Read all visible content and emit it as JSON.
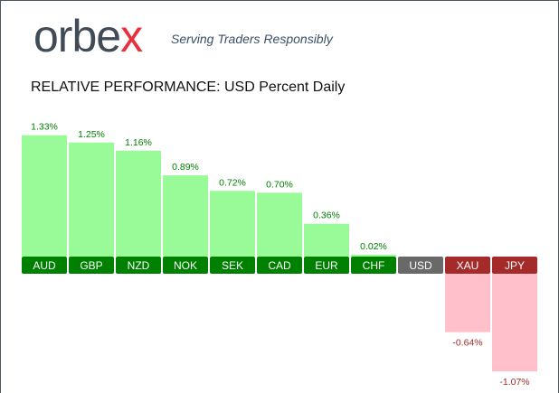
{
  "brand": {
    "logo_text": "orbex",
    "tagline": "Serving Traders Responsibly"
  },
  "chart_data": {
    "type": "bar",
    "title": "RELATIVE PERFORMANCE: USD Percent Daily",
    "categories": [
      "AUD",
      "GBP",
      "NZD",
      "NOK",
      "SEK",
      "CAD",
      "EUR",
      "CHF",
      "USD",
      "XAU",
      "JPY"
    ],
    "values": [
      1.33,
      1.25,
      1.16,
      0.89,
      0.72,
      0.7,
      0.36,
      0.02,
      0,
      -0.64,
      -1.07
    ],
    "labels": [
      "1.33%",
      "1.25%",
      "1.16%",
      "0.89%",
      "0.72%",
      "0.70%",
      "0.36%",
      "0.02%",
      "",
      "-0.64%",
      "-1.07%"
    ],
    "base_currency": "USD",
    "colors": {
      "pos_bar": "#98fb98",
      "pos_label": "#008000",
      "pos_text": "#008000",
      "neg_bar": "#ffc0cb",
      "neg_label": "#a52a2a",
      "neg_text": "#a52a2a",
      "base_label": "#696969"
    }
  }
}
